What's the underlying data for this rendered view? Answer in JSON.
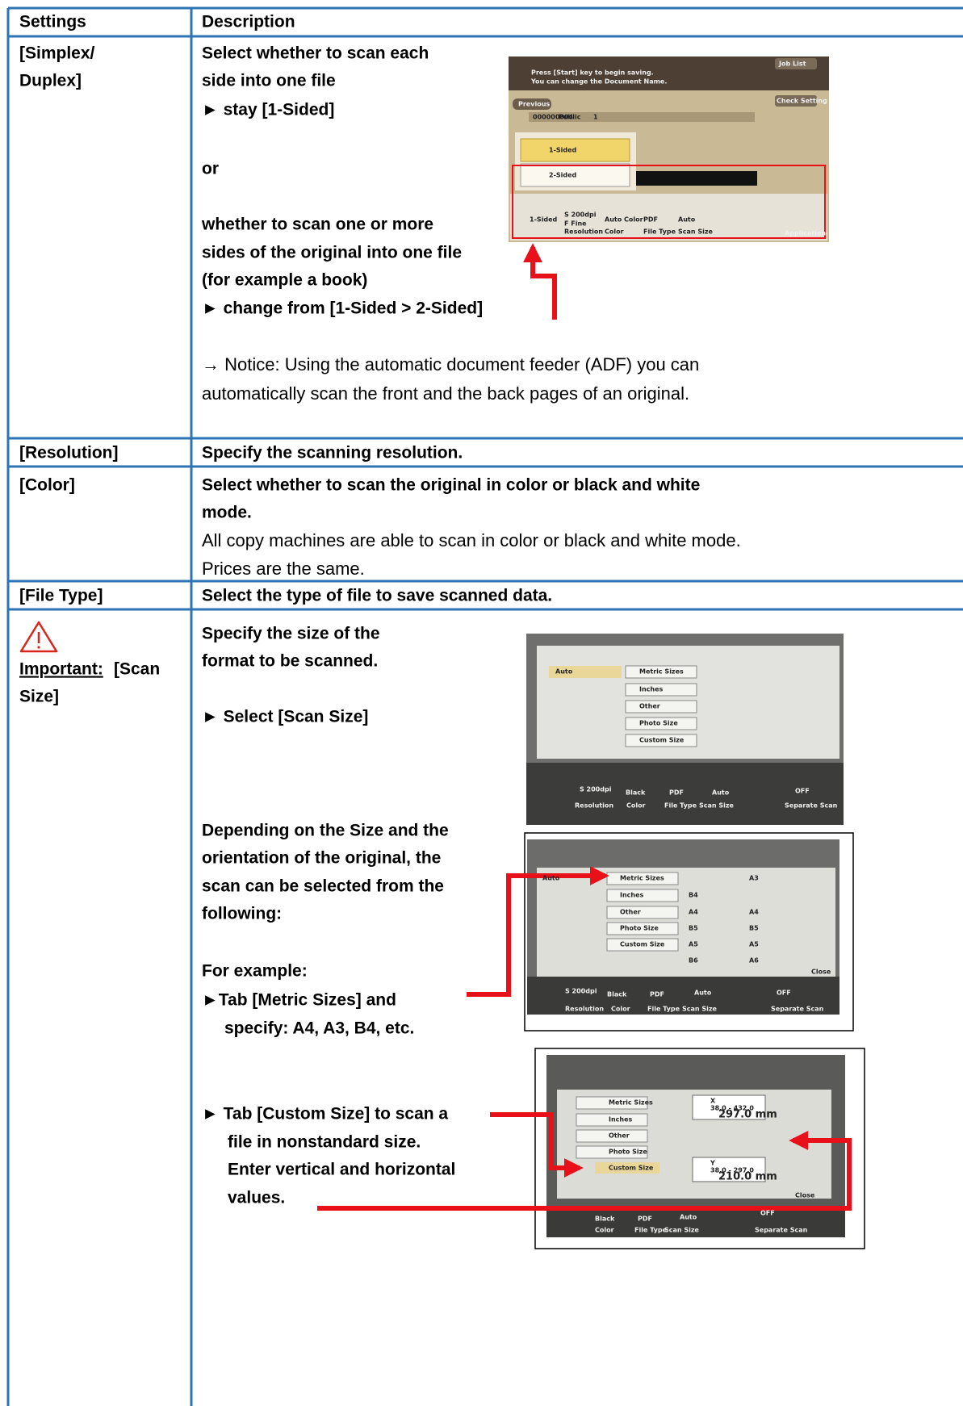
{
  "table": {
    "header": [
      "Settings",
      "Description"
    ],
    "rows": [
      {
        "setting": [
          "[Simplex/",
          "Duplex]"
        ],
        "description": [
          "Select whether to scan each",
          "side into one file",
          "► stay [1-Sided]",
          "or",
          "whether to scan one or more",
          "sides of the original into one file",
          "(for example a book)",
          "► change from [1-Sided > 2-Sided]"
        ],
        "notes": [
          "→ Notice: Using the automatic document feeder (ADF) you can",
          "automatically scan the front and the back pages of an original."
        ]
      },
      {
        "setting": [
          "[Resolution]"
        ],
        "description": [
          "Specify the scanning resolution."
        ]
      },
      {
        "setting": [
          "[Color]"
        ],
        "description": [
          "Select whether to scan the original in color or black and white",
          "mode."
        ],
        "notes": [
          "All copy machines are able to scan in color or black and white mode.",
          "Prices are the same."
        ]
      },
      {
        "setting": [
          "[File Type]"
        ],
        "description": [
          "Select the type of file to save scanned data."
        ]
      },
      {
        "setting": [
          "Important:",
          "[Scan",
          "Size]"
        ],
        "description": [
          "Specify the size of the",
          "format to be scanned.",
          "► Select [Scan Size]",
          "Depending on the Size and the",
          "orientation of the original, the",
          "scan can be selected from the",
          "following:",
          "For example:",
          "►Tab [Metric Sizes] and",
          "specify: A4, A3, B4, etc.",
          "► Tab [Custom Size] to scan a",
          "file in nonstandard size.",
          "Enter vertical and horizontal",
          "values."
        ]
      }
    ]
  },
  "screenshots": [
    {
      "labels": [
        "Job List",
        "Press [Start] key to begin saving.",
        "You can change the Document Name.",
        "Previous",
        "Check Setting",
        "1-Sided",
        "2-Sided",
        "1-Sided",
        "S 200dpi",
        "F Fine",
        "Auto Color",
        "PDF",
        "Auto",
        "Resolution",
        "Color",
        "File Type",
        "Scan Size",
        "Application",
        "000000004",
        "Public",
        "1"
      ]
    },
    {
      "labels": [
        "Auto",
        "Metric Sizes",
        "Inches",
        "Other",
        "Photo Size",
        "Custom Size",
        "S 200dpi",
        "Black",
        "PDF",
        "Auto",
        "OFF",
        "Resolution",
        "Color",
        "File Type",
        "Scan Size",
        "Separate Scan"
      ]
    },
    {
      "labels": [
        "Auto",
        "Metric Sizes",
        "Inches",
        "Other",
        "Photo Size",
        "Custom Size",
        "A3",
        "B4",
        "A4",
        "A4",
        "B5",
        "B5",
        "A5",
        "A5",
        "B6",
        "A6",
        "Close",
        "S 200dpi",
        "Black",
        "PDF",
        "Auto",
        "OFF",
        "Resolution",
        "Color",
        "File Type",
        "Scan Size",
        "Separate Scan"
      ]
    },
    {
      "labels": [
        "Metric Sizes",
        "Inches",
        "Other",
        "Photo Size",
        "Custom Size",
        "X",
        "38.0 - 432.0",
        "297.0 mm",
        "Y",
        "38.0 - 297.0",
        "210.0 mm",
        "Close",
        "Black",
        "PDF",
        "Auto",
        "OFF",
        "Color",
        "File Type",
        "Scan Size",
        "Separate Scan"
      ]
    }
  ]
}
